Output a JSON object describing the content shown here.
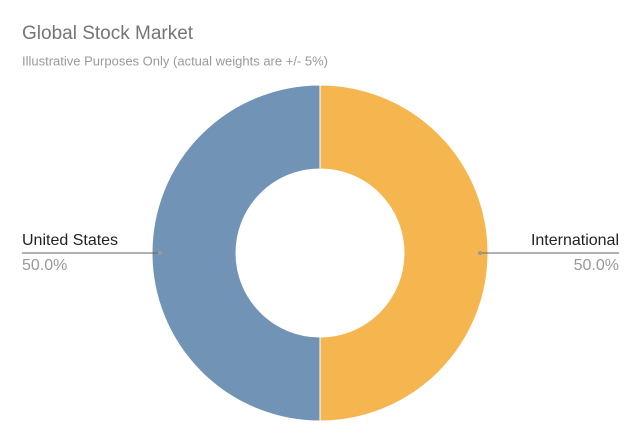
{
  "chart_data": {
    "type": "donut",
    "title": "Global Stock Market",
    "subtitle": "Illustrative Purposes Only (actual weights are +/- 5%)",
    "categories": [
      "International",
      "United States"
    ],
    "values": [
      50,
      50
    ],
    "value_labels": [
      "50.0%",
      "50.0%"
    ],
    "colors": [
      "#f5b64f",
      "#7093b6"
    ]
  }
}
